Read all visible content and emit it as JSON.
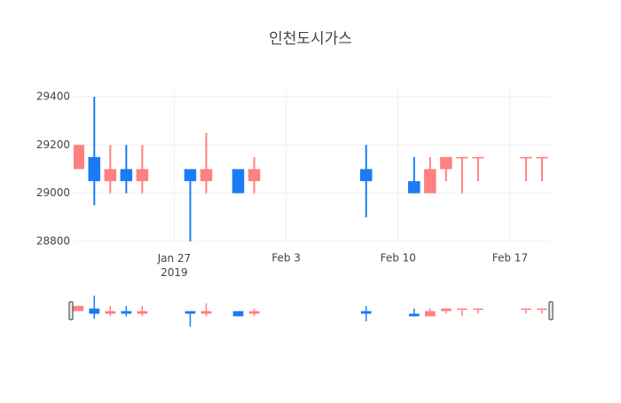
{
  "chart_data": {
    "type": "candlestick",
    "title": "인천도시가스",
    "x": [
      "2019-01-21",
      "2019-01-22",
      "2019-01-23",
      "2019-01-24",
      "2019-01-25",
      "2019-01-28",
      "2019-01-29",
      "2019-01-31",
      "2019-02-01",
      "2019-02-08",
      "2019-02-11",
      "2019-02-12",
      "2019-02-13",
      "2019-02-14",
      "2019-02-15",
      "2019-02-18",
      "2019-02-19"
    ],
    "open": [
      29100,
      29150,
      29050,
      29100,
      29050,
      29100,
      29050,
      29100,
      29050,
      29100,
      29050,
      29000,
      29100,
      29150,
      29150,
      29150,
      29150
    ],
    "high": [
      29200,
      29400,
      29200,
      29200,
      29200,
      29100,
      29250,
      29100,
      29150,
      29200,
      29150,
      29150,
      29150,
      29150,
      29150,
      29150,
      29150
    ],
    "low": [
      29100,
      28950,
      29000,
      29000,
      29000,
      28800,
      29000,
      29000,
      29000,
      28900,
      29000,
      29000,
      29050,
      29000,
      29050,
      29050,
      29050
    ],
    "close": [
      29200,
      29050,
      29100,
      29050,
      29100,
      29050,
      29100,
      29000,
      29100,
      29050,
      29000,
      29100,
      29150,
      29150,
      29150,
      29150,
      29150
    ],
    "increasing_color": "#ff8080",
    "decreasing_color": "#1a7cf5",
    "xlim": [
      "2019-01-20T17:00:00Z",
      "2019-02-19T12:00:00Z"
    ],
    "xticks": [
      {
        "value": "2019-01-27",
        "label": "Jan 27\n2019"
      },
      {
        "value": "2019-02-03",
        "label": "Feb 3"
      },
      {
        "value": "2019-02-10",
        "label": "Feb 10"
      },
      {
        "value": "2019-02-17",
        "label": "Feb 17"
      }
    ],
    "ylim": [
      28800,
      29433
    ],
    "yticks": [
      28800,
      29000,
      29200,
      29400
    ],
    "grid": true,
    "rangeslider": true
  }
}
